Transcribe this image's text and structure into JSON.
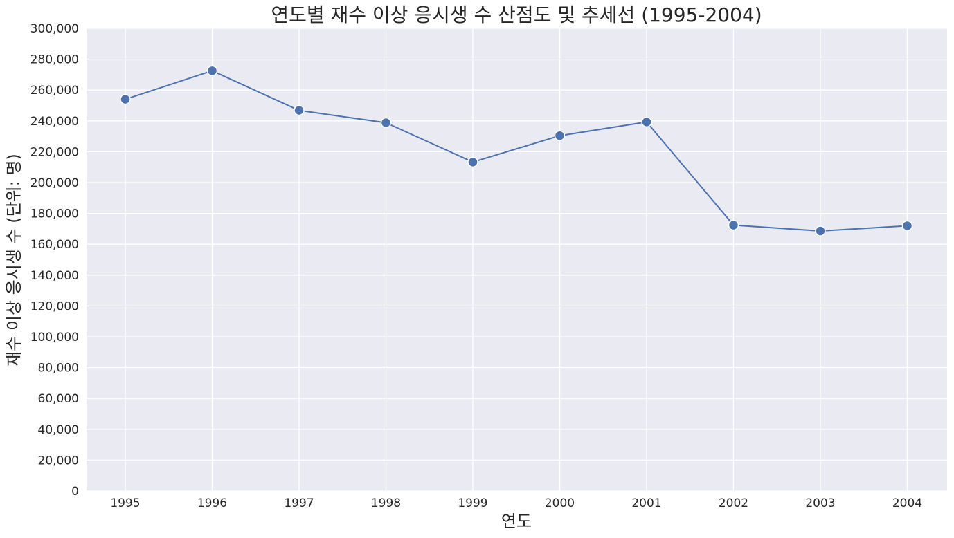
{
  "chart_data": {
    "type": "line",
    "title": "연도별 재수 이상 응시생 수 산점도 및 추세선 (1995-2004)",
    "xlabel": "연도",
    "ylabel": "재수 이상 응시생 수 (단위: 명)",
    "x": [
      1995,
      1996,
      1997,
      1998,
      1999,
      2000,
      2001,
      2002,
      2003,
      2004
    ],
    "x_tick_labels": [
      "1995",
      "1996",
      "1997",
      "1998",
      "1999",
      "2000",
      "2001",
      "2002",
      "2003",
      "2004"
    ],
    "series": [
      {
        "values": [
          254000,
          272500,
          246800,
          238800,
          213300,
          230400,
          239300,
          172400,
          168600,
          172000
        ],
        "color": "#4c72b0",
        "marker": "circle"
      }
    ],
    "ylim": [
      0,
      300000
    ],
    "y_ticks": [
      0,
      20000,
      40000,
      60000,
      80000,
      100000,
      120000,
      140000,
      160000,
      180000,
      200000,
      220000,
      240000,
      260000,
      280000,
      300000
    ],
    "y_tick_labels": [
      "0",
      "20,000",
      "40,000",
      "60,000",
      "80,000",
      "100,000",
      "120,000",
      "140,000",
      "160,000",
      "180,000",
      "200,000",
      "220,000",
      "240,000",
      "260,000",
      "280,000",
      "300,000"
    ],
    "grid": true,
    "background": "#eaeaf2",
    "grid_color": "#ffffff"
  }
}
